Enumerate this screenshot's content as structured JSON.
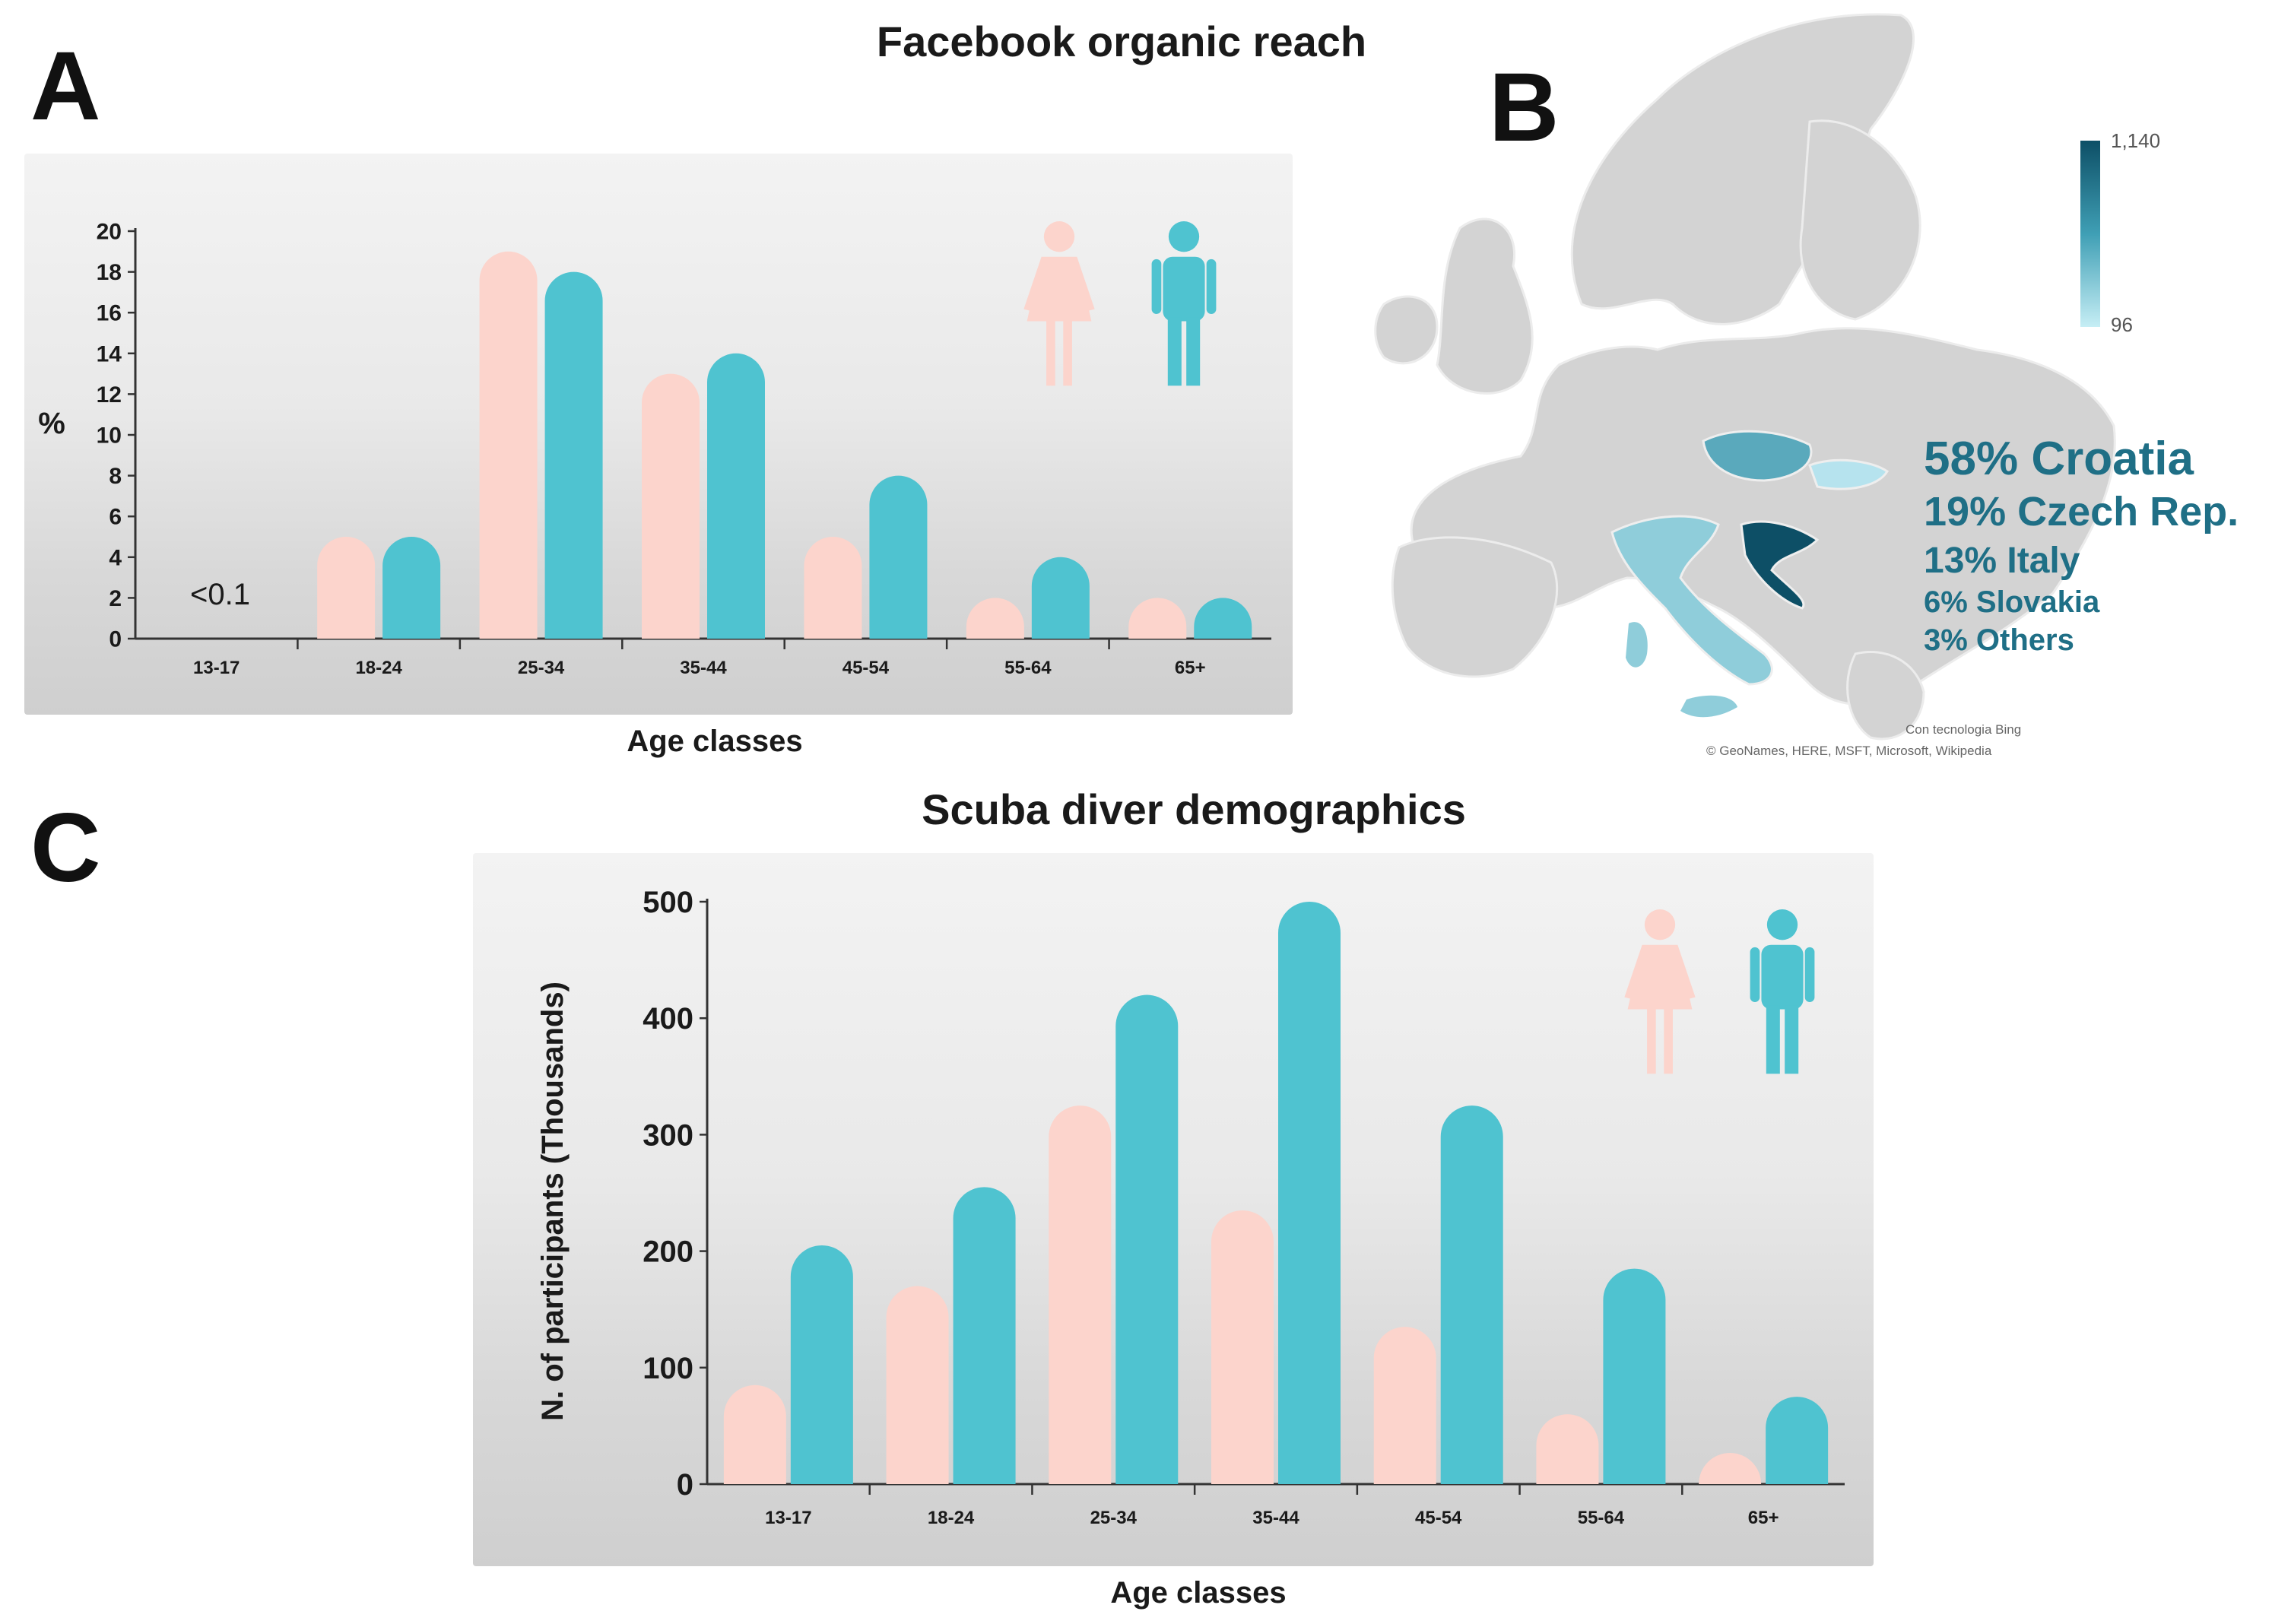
{
  "panels": {
    "a_letter": "A",
    "b_letter": "B",
    "c_letter": "C"
  },
  "colors": {
    "female": "#fcd4cc",
    "male": "#4fc3d0",
    "text_teal": "#1f6f86",
    "scale_high": "#0d4f66",
    "scale_low": "#c6eef5"
  },
  "icons": [
    "female-figure-icon",
    "male-figure-icon"
  ],
  "chart_data": [
    {
      "id": "A",
      "type": "bar",
      "title": "Facebook organic reach",
      "xlabel": "Age classes",
      "ylabel": "%",
      "ylim": [
        0,
        20
      ],
      "yticks": [
        "0",
        "2",
        "4",
        "6",
        "8",
        "10",
        "12",
        "14",
        "16",
        "18",
        "20"
      ],
      "categories": [
        "13-17",
        "18-24",
        "25-34",
        "35-44",
        "45-54",
        "55-64",
        "65+"
      ],
      "series": [
        {
          "name": "Female",
          "values": [
            0,
            5,
            19,
            13,
            5,
            2,
            2
          ]
        },
        {
          "name": "Male",
          "values": [
            0,
            5,
            18,
            14,
            8,
            4,
            2
          ]
        }
      ],
      "annotation": "<0.1"
    },
    {
      "id": "B",
      "type": "map",
      "scale_max": "1,140",
      "scale_min": "96",
      "stats": [
        {
          "text": "58% Croatia",
          "value": 58
        },
        {
          "text": "19% Czech Rep.",
          "value": 19
        },
        {
          "text": "13% Italy",
          "value": 13
        },
        {
          "text": "6% Slovakia",
          "value": 6
        },
        {
          "text": "3% Others",
          "value": 3
        }
      ],
      "credit_line1": "Con tecnologia Bing",
      "credit_line2": "© GeoNames, HERE, MSFT, Microsoft, Wikipedia"
    },
    {
      "id": "C",
      "type": "bar",
      "title": "Scuba diver demographics",
      "xlabel": "Age classes",
      "ylabel": "N. of participants (Thousands)",
      "ylim": [
        0,
        500
      ],
      "yticks": [
        "0",
        "100",
        "200",
        "300",
        "400",
        "500"
      ],
      "categories": [
        "13-17",
        "18-24",
        "25-34",
        "35-44",
        "45-54",
        "55-64",
        "65+"
      ],
      "series": [
        {
          "name": "Female",
          "values": [
            85,
            170,
            325,
            235,
            135,
            60,
            20
          ]
        },
        {
          "name": "Male",
          "values": [
            205,
            255,
            420,
            500,
            325,
            185,
            75
          ]
        }
      ]
    }
  ]
}
